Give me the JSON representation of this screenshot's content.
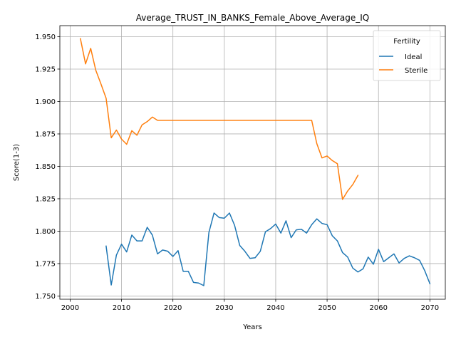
{
  "chart_data": {
    "type": "line",
    "title": "Average_TRUST_IN_BANKS_Female_Above_Average_IQ",
    "xlabel": "Years",
    "ylabel": "Score(1-3)",
    "xlim": [
      1998,
      2073
    ],
    "ylim": [
      1.7475,
      1.9585
    ],
    "x_ticks": [
      2000,
      2010,
      2020,
      2030,
      2040,
      2050,
      2060,
      2070
    ],
    "y_ticks": [
      1.75,
      1.775,
      1.8,
      1.825,
      1.85,
      1.875,
      1.9,
      1.925,
      1.95
    ],
    "y_tick_labels": [
      "1.750",
      "1.775",
      "1.800",
      "1.825",
      "1.850",
      "1.875",
      "1.900",
      "1.925",
      "1.950"
    ],
    "grid": true,
    "legend": {
      "title": "Fertility",
      "placement": "top-right"
    },
    "series": [
      {
        "name": "Ideal",
        "color": "#1f77b4",
        "x": [
          2007,
          2008,
          2009,
          2010,
          2011,
          2012,
          2013,
          2014,
          2015,
          2016,
          2017,
          2018,
          2019,
          2020,
          2021,
          2022,
          2023,
          2024,
          2025,
          2026,
          2027,
          2028,
          2029,
          2030,
          2031,
          2032,
          2033,
          2034,
          2035,
          2036,
          2037,
          2038,
          2039,
          2040,
          2041,
          2042,
          2043,
          2044,
          2045,
          2046,
          2047,
          2048,
          2049,
          2050,
          2051,
          2052,
          2053,
          2054,
          2055,
          2056,
          2057,
          2058,
          2059,
          2060,
          2061,
          2062,
          2063,
          2064,
          2065,
          2066,
          2067,
          2068,
          2069,
          2070
        ],
        "y": [
          1.7885,
          1.7585,
          1.7815,
          1.79,
          1.784,
          1.797,
          1.7925,
          1.7925,
          1.803,
          1.797,
          1.7825,
          1.7855,
          1.7845,
          1.7805,
          1.785,
          1.769,
          1.769,
          1.7605,
          1.76,
          1.758,
          1.799,
          1.814,
          1.8105,
          1.81,
          1.814,
          1.8045,
          1.789,
          1.7845,
          1.779,
          1.7795,
          1.7845,
          1.7995,
          1.802,
          1.8055,
          1.7985,
          1.808,
          1.795,
          1.801,
          1.8015,
          1.7985,
          1.805,
          1.8095,
          1.806,
          1.805,
          1.7965,
          1.7925,
          1.7835,
          1.78,
          1.7715,
          1.7685,
          1.771,
          1.78,
          1.7745,
          1.786,
          1.7765,
          1.7795,
          1.7825,
          1.7755,
          1.779,
          1.781,
          1.7795,
          1.7775,
          1.7695,
          1.7595
        ]
      },
      {
        "name": "Sterile",
        "color": "#ff7f0e",
        "x": [
          2002,
          2003,
          2004,
          2005,
          2006,
          2007,
          2008,
          2009,
          2010,
          2011,
          2012,
          2013,
          2014,
          2015,
          2016,
          2017,
          2018,
          2019,
          2020,
          2021,
          2022,
          2023,
          2024,
          2025,
          2026,
          2027,
          2028,
          2029,
          2030,
          2031,
          2032,
          2033,
          2034,
          2035,
          2036,
          2037,
          2038,
          2039,
          2040,
          2041,
          2042,
          2043,
          2044,
          2045,
          2046,
          2047,
          2048,
          2049,
          2050,
          2051,
          2052,
          2053,
          2054,
          2055,
          2056
        ],
        "y": [
          1.9485,
          1.929,
          1.941,
          1.924,
          1.9135,
          1.9025,
          1.872,
          1.878,
          1.871,
          1.867,
          1.8775,
          1.874,
          1.882,
          1.8845,
          1.888,
          1.8855,
          1.8855,
          1.8855,
          1.8855,
          1.8855,
          1.8855,
          1.8855,
          1.8855,
          1.8855,
          1.8855,
          1.8855,
          1.8855,
          1.8855,
          1.8855,
          1.8855,
          1.8855,
          1.8855,
          1.8855,
          1.8855,
          1.8855,
          1.8855,
          1.8855,
          1.8855,
          1.8855,
          1.8855,
          1.8855,
          1.8855,
          1.8855,
          1.8855,
          1.8855,
          1.8855,
          1.8675,
          1.8565,
          1.858,
          1.8545,
          1.852,
          1.8245,
          1.831,
          1.836,
          1.843
        ]
      }
    ]
  }
}
